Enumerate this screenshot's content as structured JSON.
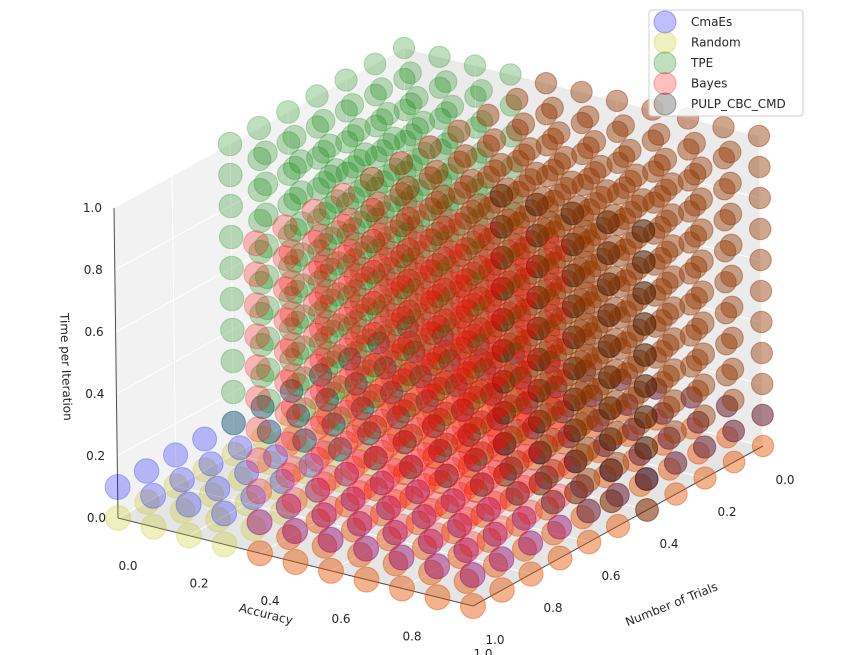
{
  "chart_data": {
    "type": "scatter",
    "projection": "3d",
    "title": "",
    "xlabel": "Accuracy",
    "ylabel": "Number of Trials",
    "zlabel": "Time per Iteration",
    "xlim": [
      0,
      1
    ],
    "ylim": [
      0,
      1
    ],
    "zlim": [
      0,
      1
    ],
    "x_ticks": [
      "0.0",
      "0.2",
      "0.4",
      "0.6",
      "0.8",
      "1.0"
    ],
    "y_ticks": [
      "0.0",
      "0.2",
      "0.4",
      "0.6",
      "0.8",
      "1.0"
    ],
    "z_ticks": [
      "0.0",
      "0.2",
      "0.4",
      "0.6",
      "0.8",
      "1.0"
    ],
    "grid": true,
    "legend_position": "top-right",
    "grid_step": 0.1,
    "series": [
      {
        "name": "CmaEs",
        "color": "#0000ff",
        "alpha": 0.25,
        "region": {
          "x": [
            0,
            1
          ],
          "y": [
            0,
            1
          ],
          "z": [
            0.1,
            0.1
          ]
        }
      },
      {
        "name": "Random",
        "color": "#bfbf00",
        "alpha": 0.25,
        "region": {
          "x": [
            0,
            1
          ],
          "y": [
            0,
            1
          ],
          "z": [
            0,
            0
          ]
        }
      },
      {
        "name": "TPE",
        "color": "#008000",
        "alpha": 0.25,
        "region": {
          "x": [
            0,
            1
          ],
          "y": [
            0,
            0.6
          ],
          "z": [
            0.1,
            1
          ]
        }
      },
      {
        "name": "Bayes",
        "color": "#ff0000",
        "alpha": 0.25,
        "region": {
          "x": [
            0.4,
            1
          ],
          "y": [
            0,
            1
          ],
          "z": [
            0,
            1
          ]
        }
      },
      {
        "name": "PULP_CBC_CMD",
        "color": "#000000",
        "alpha": 0.25,
        "region": {
          "x": [
            0.6,
            1
          ],
          "y": [
            0.4,
            0.4
          ],
          "z": [
            0,
            0.9
          ]
        }
      }
    ]
  }
}
